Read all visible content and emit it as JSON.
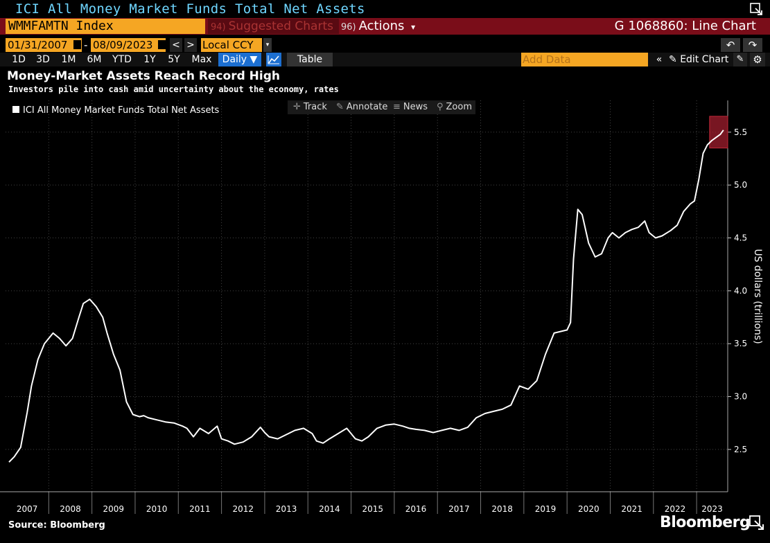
{
  "window": {
    "title": "ICI All Money Market Funds Total Net Assets"
  },
  "command": {
    "ticker": "WMMFAMTN Index",
    "suggested_badge": "94)",
    "suggested_label": "Suggested Charts",
    "actions_badge": "96)",
    "actions_label": "Actions",
    "actions_arrow": "▾",
    "chart_id": "G 1068860: Line Chart"
  },
  "dates": {
    "start": "01/31/2007",
    "separator": "-",
    "end": "08/09/2023",
    "prev": "<",
    "next": ">",
    "currency": "Local CCY",
    "currency_arrow": "▾",
    "undo": "↶",
    "redo": "↷"
  },
  "ranges": [
    "1D",
    "3D",
    "1M",
    "6M",
    "YTD",
    "1Y",
    "5Y",
    "Max"
  ],
  "frequency": "Daily ▼",
  "table_label": "Table",
  "add_data_placeholder": "Add Data",
  "collapse": "«",
  "edit_chart": {
    "icon": "✎",
    "label": "Edit Chart"
  },
  "edit_icon": "✎",
  "settings_icon": "⚙",
  "toolbar": {
    "track": {
      "icon": "✛",
      "label": "Track"
    },
    "annotate": {
      "icon": "✎",
      "label": "Annotate"
    },
    "news": {
      "icon": "≡",
      "label": "News"
    },
    "zoom": {
      "icon": "⚲",
      "label": "Zoom"
    }
  },
  "footer": {
    "source": "Source: Bloomberg",
    "brand": "Bloomberg"
  },
  "colors": {
    "accent_orange": "#f5a623",
    "bar_red": "#7a0d19",
    "line": "#ffffff",
    "highlight": "#c2283a"
  },
  "chart_data": {
    "type": "line",
    "title": "Money-Market Assets Reach Record High",
    "subtitle": "Investors pile into cash amid uncertainty about the economy, rates",
    "ylabel": "US dollars (trillions)",
    "xlabel": "",
    "ylim": [
      2.1,
      5.8
    ],
    "xlim": [
      2007.0,
      2023.72
    ],
    "yticks": [
      2.5,
      3.0,
      3.5,
      4.0,
      4.5,
      5.0,
      5.5
    ],
    "ytick_labels": [
      "2.5",
      "3.0",
      "3.5",
      "4.0",
      "4.5",
      "5.0",
      "5.5"
    ],
    "xticks": [
      "2007",
      "2008",
      "2009",
      "2010",
      "2011",
      "2012",
      "2013",
      "2014",
      "2015",
      "2016",
      "2017",
      "2018",
      "2019",
      "2020",
      "2021",
      "2022",
      "2023"
    ],
    "grid": true,
    "legend": "top-left",
    "series": [
      {
        "name": "ICI All Money Market Funds Total Net Assets",
        "x": [
          2007.08,
          2007.2,
          2007.35,
          2007.5,
          2007.6,
          2007.75,
          2007.9,
          2008.0,
          2008.1,
          2008.25,
          2008.4,
          2008.55,
          2008.7,
          2008.8,
          2008.95,
          2009.1,
          2009.25,
          2009.35,
          2009.5,
          2009.65,
          2009.8,
          2009.95,
          2010.1,
          2010.2,
          2010.3,
          2010.5,
          2010.7,
          2010.9,
          2011.1,
          2011.2,
          2011.35,
          2011.5,
          2011.7,
          2011.9,
          2012.0,
          2012.15,
          2012.3,
          2012.5,
          2012.7,
          2012.9,
          2013.0,
          2013.1,
          2013.3,
          2013.5,
          2013.7,
          2013.9,
          2014.1,
          2014.2,
          2014.35,
          2014.5,
          2014.7,
          2014.9,
          2015.1,
          2015.25,
          2015.4,
          2015.6,
          2015.8,
          2016.0,
          2016.2,
          2016.35,
          2016.5,
          2016.7,
          2016.9,
          2017.1,
          2017.3,
          2017.5,
          2017.7,
          2017.9,
          2018.1,
          2018.3,
          2018.5,
          2018.7,
          2018.9,
          2019.1,
          2019.3,
          2019.5,
          2019.7,
          2019.9,
          2020.0,
          2020.08,
          2020.15,
          2020.25,
          2020.35,
          2020.5,
          2020.65,
          2020.8,
          2020.95,
          2021.05,
          2021.2,
          2021.35,
          2021.5,
          2021.65,
          2021.8,
          2021.9,
          2022.05,
          2022.2,
          2022.4,
          2022.55,
          2022.7,
          2022.85,
          2022.95,
          2023.05,
          2023.15,
          2023.25,
          2023.35,
          2023.45,
          2023.55,
          2023.62
        ],
        "y": [
          2.38,
          2.43,
          2.52,
          2.85,
          3.1,
          3.35,
          3.5,
          3.55,
          3.6,
          3.55,
          3.48,
          3.55,
          3.75,
          3.88,
          3.92,
          3.85,
          3.75,
          3.6,
          3.4,
          3.25,
          2.95,
          2.83,
          2.81,
          2.82,
          2.8,
          2.78,
          2.76,
          2.75,
          2.72,
          2.7,
          2.62,
          2.7,
          2.65,
          2.72,
          2.6,
          2.58,
          2.55,
          2.57,
          2.62,
          2.71,
          2.66,
          2.62,
          2.6,
          2.64,
          2.68,
          2.7,
          2.65,
          2.58,
          2.56,
          2.6,
          2.65,
          2.7,
          2.6,
          2.58,
          2.62,
          2.7,
          2.73,
          2.74,
          2.72,
          2.7,
          2.69,
          2.68,
          2.66,
          2.68,
          2.7,
          2.68,
          2.71,
          2.8,
          2.84,
          2.86,
          2.88,
          2.92,
          3.1,
          3.07,
          3.15,
          3.4,
          3.6,
          3.62,
          3.63,
          3.7,
          4.3,
          4.77,
          4.72,
          4.45,
          4.32,
          4.35,
          4.5,
          4.55,
          4.5,
          4.55,
          4.58,
          4.6,
          4.66,
          4.55,
          4.5,
          4.52,
          4.57,
          4.62,
          4.75,
          4.82,
          4.85,
          5.05,
          5.3,
          5.38,
          5.42,
          5.45,
          5.48,
          5.52
        ]
      }
    ],
    "highlight": {
      "x_start": 2023.3,
      "x_end": 2023.72,
      "y_start": 5.35,
      "y_end": 5.65
    }
  }
}
